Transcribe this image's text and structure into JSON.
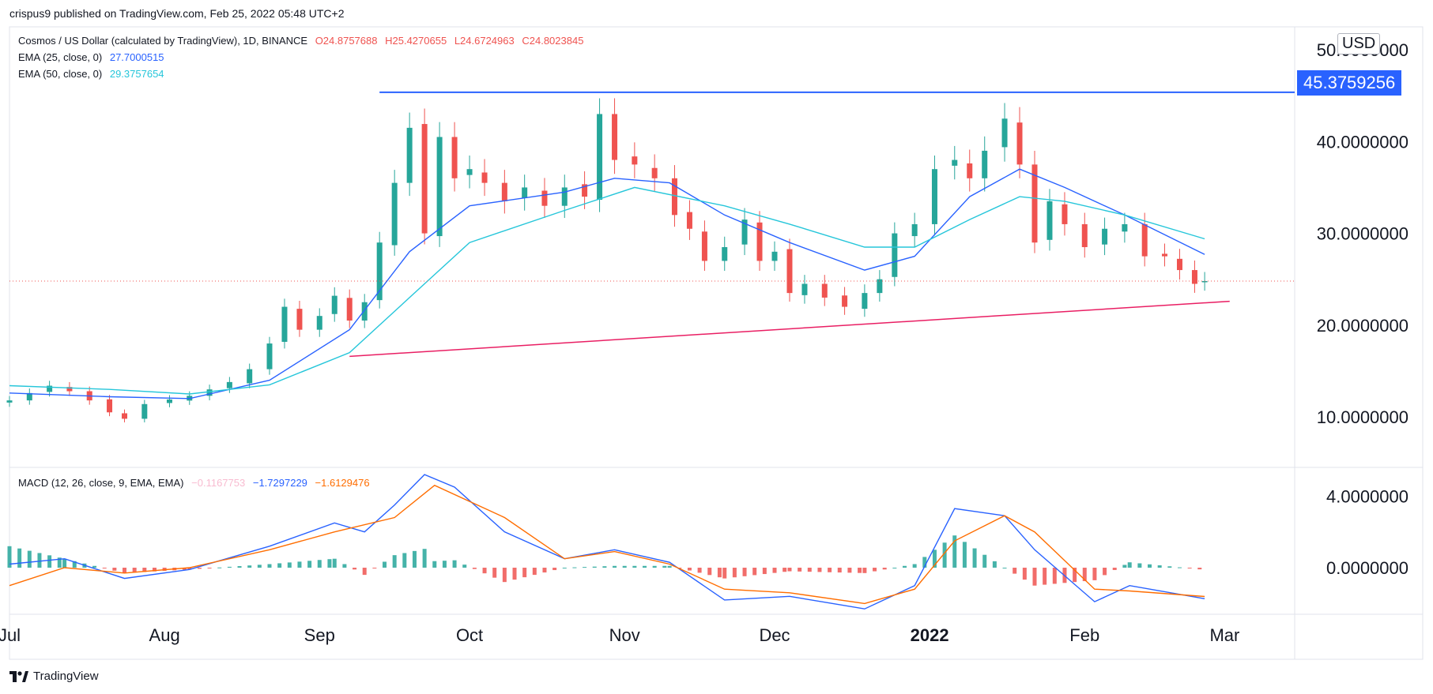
{
  "header": {
    "published": "crispus9 published on TradingView.com, Feb 25, 2022 05:48 UTC+2"
  },
  "legend": {
    "symbol": "Cosmos / US Dollar (calculated by TradingView), 1D, BINANCE",
    "ohlc": {
      "open": "O24.8757688",
      "high": "H25.4270655",
      "low": "L24.6724963",
      "close": "C24.8023845"
    },
    "ema25": {
      "label": "EMA (25, close, 0)",
      "value": "27.7000515"
    },
    "ema50": {
      "label": "EMA (50, close, 0)",
      "value": "29.3757654"
    },
    "macd": {
      "label": "MACD (12, 26, close, 9, EMA, EMA)",
      "hist": "−0.1167753",
      "macd": "−1.7297229",
      "signal": "−1.6129476"
    }
  },
  "price_axis": {
    "currency": "USD",
    "current_tag": "45.3759256"
  },
  "footer": {
    "brand": "TradingView"
  },
  "colors": {
    "up": "#26a69a",
    "down": "#ef5350",
    "ema25": "#2962ff",
    "ema50": "#26c6da",
    "resistance": "#2962ff",
    "support": "#e91e63",
    "macd_line": "#2962ff",
    "signal_line": "#ff6d00",
    "grid": "#e0e3eb"
  },
  "chart_data": [
    {
      "type": "candlestick",
      "title": "Cosmos / US Dollar (calculated by TradingView), 1D, BINANCE",
      "yticks": [
        "10.0000000",
        "20.0000000",
        "30.0000000",
        "40.0000000",
        "50.0000000"
      ],
      "ytick_values": [
        10,
        20,
        30,
        40,
        50
      ],
      "ylim": [
        4.5,
        52.5
      ],
      "xticks": [
        {
          "label": "Jul",
          "date": "2021-07-01"
        },
        {
          "label": "Aug",
          "date": "2021-08-01"
        },
        {
          "label": "Sep",
          "date": "2021-09-01"
        },
        {
          "label": "Oct",
          "date": "2021-10-01"
        },
        {
          "label": "Nov",
          "date": "2021-11-01"
        },
        {
          "label": "Dec",
          "date": "2021-12-01"
        },
        {
          "label": "2022",
          "date": "2022-01-01",
          "bold": true
        },
        {
          "label": "Feb",
          "date": "2022-02-01"
        },
        {
          "label": "Mar",
          "date": "2022-03-01"
        }
      ],
      "xlim": [
        "2021-07-01",
        "2022-03-15"
      ],
      "last_close": 24.8023845,
      "horizontal_line": {
        "value": 45.3759256,
        "from": "2021-09-13",
        "to": "2022-03-15"
      },
      "trendline": {
        "from": {
          "date": "2021-09-07",
          "value": 16.6
        },
        "to": {
          "date": "2022-03-02",
          "value": 22.6
        }
      },
      "series": [
        {
          "name": "Close (approx.)",
          "points": [
            [
              "2021-07-01",
              11.8
            ],
            [
              "2021-07-05",
              12.6
            ],
            [
              "2021-07-09",
              13.4
            ],
            [
              "2021-07-13",
              12.8
            ],
            [
              "2021-07-17",
              11.8
            ],
            [
              "2021-07-21",
              10.5
            ],
            [
              "2021-07-24",
              9.8
            ],
            [
              "2021-07-28",
              11.4
            ],
            [
              "2021-08-02",
              11.9
            ],
            [
              "2021-08-06",
              12.3
            ],
            [
              "2021-08-10",
              13.0
            ],
            [
              "2021-08-14",
              13.8
            ],
            [
              "2021-08-18",
              15.2
            ],
            [
              "2021-08-22",
              18.0
            ],
            [
              "2021-08-25",
              22.0
            ],
            [
              "2021-08-28",
              19.5
            ],
            [
              "2021-09-01",
              21.0
            ],
            [
              "2021-09-04",
              23.2
            ],
            [
              "2021-09-07",
              20.5
            ],
            [
              "2021-09-10",
              22.5
            ],
            [
              "2021-09-13",
              29.0
            ],
            [
              "2021-09-16",
              35.5
            ],
            [
              "2021-09-19",
              41.5
            ],
            [
              "2021-09-22",
              30.0
            ],
            [
              "2021-09-25",
              40.5
            ],
            [
              "2021-09-28",
              36.0
            ],
            [
              "2021-10-01",
              37.0
            ],
            [
              "2021-10-04",
              35.5
            ],
            [
              "2021-10-08",
              33.5
            ],
            [
              "2021-10-12",
              35.0
            ],
            [
              "2021-10-16",
              33.0
            ],
            [
              "2021-10-20",
              35.0
            ],
            [
              "2021-10-24",
              34.0
            ],
            [
              "2021-10-27",
              43.0
            ],
            [
              "2021-10-30",
              38.0
            ],
            [
              "2021-11-03",
              37.5
            ],
            [
              "2021-11-07",
              36.0
            ],
            [
              "2021-11-11",
              32.0
            ],
            [
              "2021-11-14",
              30.5
            ],
            [
              "2021-11-17",
              27.0
            ],
            [
              "2021-11-21",
              28.5
            ],
            [
              "2021-11-25",
              31.5
            ],
            [
              "2021-11-28",
              27.0
            ],
            [
              "2021-12-01",
              28.0
            ],
            [
              "2021-12-04",
              23.5
            ],
            [
              "2021-12-07",
              24.5
            ],
            [
              "2021-12-11",
              23.0
            ],
            [
              "2021-12-15",
              22.0
            ],
            [
              "2021-12-19",
              23.5
            ],
            [
              "2021-12-22",
              25.0
            ],
            [
              "2021-12-25",
              30.0
            ],
            [
              "2021-12-29",
              31.0
            ],
            [
              "2022-01-02",
              37.0
            ],
            [
              "2022-01-06",
              38.0
            ],
            [
              "2022-01-09",
              36.0
            ],
            [
              "2022-01-12",
              39.0
            ],
            [
              "2022-01-16",
              42.5
            ],
            [
              "2022-01-19",
              37.5
            ],
            [
              "2022-01-22",
              29.0
            ],
            [
              "2022-01-25",
              33.5
            ],
            [
              "2022-01-28",
              31.0
            ],
            [
              "2022-02-01",
              28.5
            ],
            [
              "2022-02-05",
              30.5
            ],
            [
              "2022-02-09",
              31.0
            ],
            [
              "2022-02-13",
              27.5
            ],
            [
              "2022-02-17",
              27.5
            ],
            [
              "2022-02-20",
              26.0
            ],
            [
              "2022-02-23",
              24.5
            ],
            [
              "2022-02-25",
              24.8
            ]
          ]
        },
        {
          "name": "EMA (25, close, 0)",
          "points": [
            [
              "2021-07-01",
              12.6
            ],
            [
              "2021-07-21",
              12.2
            ],
            [
              "2021-08-06",
              12.0
            ],
            [
              "2021-08-22",
              14.0
            ],
            [
              "2021-09-07",
              19.5
            ],
            [
              "2021-09-19",
              28.0
            ],
            [
              "2021-10-01",
              33.0
            ],
            [
              "2021-10-20",
              34.5
            ],
            [
              "2021-10-30",
              36.0
            ],
            [
              "2021-11-10",
              35.5
            ],
            [
              "2021-11-21",
              32.0
            ],
            [
              "2021-12-04",
              29.0
            ],
            [
              "2021-12-19",
              26.0
            ],
            [
              "2021-12-29",
              27.5
            ],
            [
              "2022-01-09",
              34.0
            ],
            [
              "2022-01-19",
              37.0
            ],
            [
              "2022-01-28",
              35.0
            ],
            [
              "2022-02-09",
              32.0
            ],
            [
              "2022-02-25",
              27.7
            ]
          ]
        },
        {
          "name": "EMA (50, close, 0)",
          "points": [
            [
              "2021-07-01",
              13.4
            ],
            [
              "2021-07-21",
              13.0
            ],
            [
              "2021-08-06",
              12.5
            ],
            [
              "2021-08-22",
              13.5
            ],
            [
              "2021-09-07",
              17.0
            ],
            [
              "2021-09-19",
              23.0
            ],
            [
              "2021-10-01",
              29.0
            ],
            [
              "2021-10-20",
              32.5
            ],
            [
              "2021-11-03",
              35.0
            ],
            [
              "2021-11-21",
              33.0
            ],
            [
              "2021-12-04",
              31.0
            ],
            [
              "2021-12-19",
              28.5
            ],
            [
              "2021-12-29",
              28.5
            ],
            [
              "2022-01-09",
              31.5
            ],
            [
              "2022-01-19",
              34.0
            ],
            [
              "2022-01-28",
              33.5
            ],
            [
              "2022-02-09",
              32.0
            ],
            [
              "2022-02-25",
              29.4
            ]
          ]
        }
      ]
    },
    {
      "type": "line",
      "title": "MACD (12, 26, close, 9, EMA, EMA)",
      "yticks": [
        "0.0000000",
        "4.0000000"
      ],
      "ytick_values": [
        0,
        4
      ],
      "ylim": [
        -2.6,
        5.6
      ],
      "xlim": [
        "2021-07-01",
        "2022-03-15"
      ],
      "series": [
        {
          "name": "MACD",
          "points": [
            [
              "2021-07-01",
              0.2
            ],
            [
              "2021-07-12",
              0.5
            ],
            [
              "2021-07-24",
              -0.6
            ],
            [
              "2021-08-06",
              -0.1
            ],
            [
              "2021-08-22",
              1.2
            ],
            [
              "2021-09-04",
              2.5
            ],
            [
              "2021-09-10",
              2.0
            ],
            [
              "2021-09-16",
              3.5
            ],
            [
              "2021-09-22",
              5.2
            ],
            [
              "2021-09-28",
              4.5
            ],
            [
              "2021-10-08",
              2.0
            ],
            [
              "2021-10-20",
              0.5
            ],
            [
              "2021-10-30",
              1.0
            ],
            [
              "2021-11-10",
              0.3
            ],
            [
              "2021-11-21",
              -1.8
            ],
            [
              "2021-12-04",
              -1.6
            ],
            [
              "2021-12-19",
              -2.3
            ],
            [
              "2021-12-29",
              -1.0
            ],
            [
              "2022-01-06",
              3.3
            ],
            [
              "2022-01-16",
              2.9
            ],
            [
              "2022-01-22",
              1.0
            ],
            [
              "2022-02-03",
              -1.9
            ],
            [
              "2022-02-10",
              -1.0
            ],
            [
              "2022-02-25",
              -1.73
            ]
          ]
        },
        {
          "name": "Signal",
          "points": [
            [
              "2021-07-01",
              -1.0
            ],
            [
              "2021-07-12",
              0.0
            ],
            [
              "2021-07-24",
              -0.3
            ],
            [
              "2021-08-06",
              0.0
            ],
            [
              "2021-08-22",
              1.0
            ],
            [
              "2021-09-04",
              2.0
            ],
            [
              "2021-09-16",
              2.8
            ],
            [
              "2021-09-24",
              4.6
            ],
            [
              "2021-10-08",
              2.8
            ],
            [
              "2021-10-20",
              0.5
            ],
            [
              "2021-10-30",
              0.9
            ],
            [
              "2021-11-10",
              0.2
            ],
            [
              "2021-11-21",
              -1.2
            ],
            [
              "2021-12-04",
              -1.4
            ],
            [
              "2021-12-19",
              -2.0
            ],
            [
              "2021-12-29",
              -1.2
            ],
            [
              "2022-01-06",
              1.5
            ],
            [
              "2022-01-16",
              2.9
            ],
            [
              "2022-01-22",
              2.0
            ],
            [
              "2022-02-03",
              -1.2
            ],
            [
              "2022-02-10",
              -1.3
            ],
            [
              "2022-02-25",
              -1.61
            ]
          ]
        }
      ]
    }
  ]
}
